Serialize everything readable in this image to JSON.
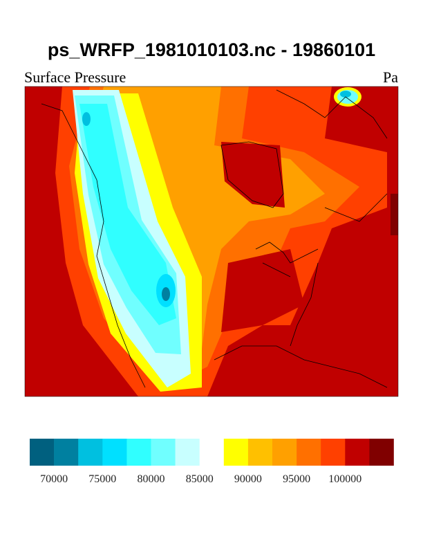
{
  "header": {
    "title": "ps_WRFP_1981010103.nc - 19860101"
  },
  "map": {
    "left_label": "Surface Pressure",
    "right_label": "Pa"
  },
  "colorbar": {
    "colors": [
      "#00607f",
      "#0080a0",
      "#00c0e0",
      "#00e0ff",
      "#30ffff",
      "#70ffff",
      "#c8ffff",
      "#ffffff",
      "#ffff00",
      "#ffc000",
      "#ffa000",
      "#ff7000",
      "#ff4000",
      "#c00000",
      "#800000"
    ],
    "labels": [
      70000,
      75000,
      80000,
      85000,
      90000,
      95000,
      100000
    ]
  }
}
